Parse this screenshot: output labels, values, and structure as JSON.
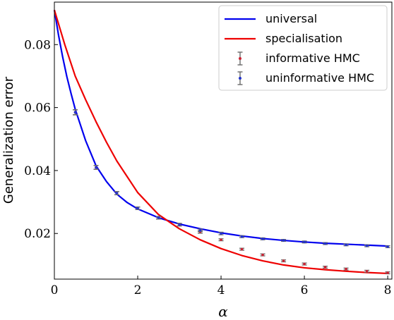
{
  "chart_data": {
    "type": "line",
    "xlabel": "α",
    "ylabel": "Generalization error",
    "xlim": [
      0,
      8.1
    ],
    "ylim": [
      0.0055,
      0.0935
    ],
    "xticks": [
      0,
      2,
      4,
      6,
      8
    ],
    "yticks": [
      0.02,
      0.04,
      0.06,
      0.08
    ],
    "xtick_labels": [
      "0",
      "2",
      "4",
      "6",
      "8"
    ],
    "ytick_labels": [
      "0.02",
      "0.04",
      "0.06",
      "0.08"
    ],
    "grid": false,
    "legend_position": "top-right",
    "lines": [
      {
        "name": "universal",
        "color": "#0000ee",
        "x": [
          0,
          0.1,
          0.2,
          0.3,
          0.4,
          0.5,
          0.75,
          1,
          1.25,
          1.5,
          1.75,
          2,
          2.5,
          3,
          3.5,
          4,
          4.5,
          5,
          5.5,
          6,
          6.5,
          7,
          7.5,
          8
        ],
        "y": [
          0.091,
          0.083,
          0.076,
          0.0698,
          0.0645,
          0.0595,
          0.0495,
          0.0415,
          0.0365,
          0.0325,
          0.0298,
          0.0278,
          0.025,
          0.023,
          0.0215,
          0.0202,
          0.0192,
          0.0184,
          0.0178,
          0.0173,
          0.0169,
          0.0166,
          0.0163,
          0.016
        ]
      },
      {
        "name": "specialisation",
        "color": "#ee0000",
        "x": [
          0,
          0.25,
          0.5,
          0.75,
          1,
          1.25,
          1.5,
          2,
          2.5,
          3,
          3.5,
          4,
          4.5,
          5,
          5.5,
          6,
          6.5,
          7,
          7.5,
          8
        ],
        "y": [
          0.091,
          0.08,
          0.07,
          0.0625,
          0.0555,
          0.049,
          0.043,
          0.033,
          0.026,
          0.0215,
          0.018,
          0.0152,
          0.013,
          0.0113,
          0.01,
          0.0091,
          0.0085,
          0.008,
          0.0076,
          0.0073
        ]
      }
    ],
    "points": [
      {
        "name": "informative HMC",
        "color": "#cc2233",
        "x": [
          0.5,
          1,
          1.5,
          2,
          2.5,
          3,
          3.5,
          4,
          4.5,
          5,
          5.5,
          6,
          6.5,
          7,
          7.5,
          8
        ],
        "y": [
          0.0585,
          0.041,
          0.0328,
          0.028,
          0.025,
          0.0228,
          0.0205,
          0.018,
          0.015,
          0.0132,
          0.0113,
          0.0103,
          0.0093,
          0.0087,
          0.008,
          0.0075
        ],
        "err": [
          0.0008,
          0.0006,
          0.0005,
          0.0004,
          0.0004,
          0.0004,
          0.0004,
          0.0003,
          0.0003,
          0.0003,
          0.0003,
          0.0003,
          0.0003,
          0.0003,
          0.0003,
          0.0003
        ]
      },
      {
        "name": "uninformative HMC",
        "color": "#2233cc",
        "x": [
          0.5,
          1,
          1.5,
          2,
          2.5,
          3,
          3.5,
          4,
          4.5,
          5,
          5.5,
          6,
          6.5,
          7,
          7.5,
          8
        ],
        "y": [
          0.0585,
          0.041,
          0.0328,
          0.028,
          0.025,
          0.0228,
          0.021,
          0.02,
          0.019,
          0.0183,
          0.0178,
          0.0173,
          0.0168,
          0.0164,
          0.0161,
          0.0158
        ],
        "err": [
          0.0008,
          0.0006,
          0.0005,
          0.0004,
          0.0004,
          0.0004,
          0.0004,
          0.0004,
          0.0003,
          0.0003,
          0.0003,
          0.0003,
          0.0003,
          0.0003,
          0.0003,
          0.0003
        ]
      }
    ],
    "errorbar_color": "#6a6a6a",
    "legend": [
      {
        "label": "universal",
        "kind": "line",
        "color": "#0000ee"
      },
      {
        "label": "specialisation",
        "kind": "line",
        "color": "#ee0000"
      },
      {
        "label": "informative HMC",
        "kind": "errorbar",
        "color": "#cc2233"
      },
      {
        "label": "uninformative HMC",
        "kind": "errorbar",
        "color": "#2233cc"
      }
    ]
  }
}
